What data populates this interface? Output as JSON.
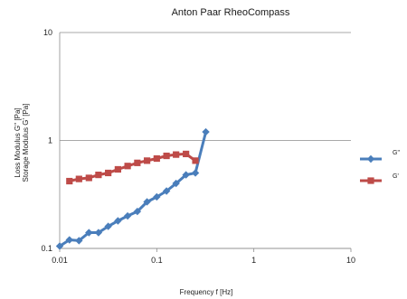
{
  "chart_data": {
    "type": "line",
    "title": "Anton Paar RheoCompass",
    "xlabel": "Frequency f [Hz]",
    "ylabel_lines": [
      "Loss Modulus G'' [Pa]",
      "Storage Modulus G' [Pa]"
    ],
    "x_scale": "log",
    "y_scale": "log",
    "xlim": [
      0.01,
      10
    ],
    "ylim": [
      0.1,
      10
    ],
    "x_ticks": [
      "0.01",
      "0.1",
      "1",
      "10"
    ],
    "y_ticks": [
      "0.1",
      "1",
      "10"
    ],
    "grid": "horizontal",
    "legend_position": "right",
    "series": [
      {
        "name": "G\"",
        "color": "#4a7ebb",
        "marker": "diamond",
        "points": [
          [
            0.01,
            0.105
          ],
          [
            0.0126,
            0.12
          ],
          [
            0.0158,
            0.118
          ],
          [
            0.02,
            0.14
          ],
          [
            0.0251,
            0.14
          ],
          [
            0.0316,
            0.16
          ],
          [
            0.0398,
            0.18
          ],
          [
            0.0501,
            0.2
          ],
          [
            0.0631,
            0.22
          ],
          [
            0.0794,
            0.27
          ],
          [
            0.1,
            0.3
          ],
          [
            0.126,
            0.34
          ],
          [
            0.158,
            0.4
          ],
          [
            0.2,
            0.48
          ],
          [
            0.25,
            0.5
          ],
          [
            0.32,
            1.2
          ]
        ]
      },
      {
        "name": "G'",
        "color": "#be4b48",
        "marker": "square",
        "points": [
          [
            0.0126,
            0.42
          ],
          [
            0.0158,
            0.44
          ],
          [
            0.02,
            0.45
          ],
          [
            0.0251,
            0.48
          ],
          [
            0.0316,
            0.5
          ],
          [
            0.0398,
            0.54
          ],
          [
            0.0501,
            0.58
          ],
          [
            0.0631,
            0.62
          ],
          [
            0.0794,
            0.65
          ],
          [
            0.1,
            0.68
          ],
          [
            0.126,
            0.72
          ],
          [
            0.158,
            0.74
          ],
          [
            0.2,
            0.75
          ],
          [
            0.25,
            0.65
          ]
        ]
      }
    ]
  }
}
